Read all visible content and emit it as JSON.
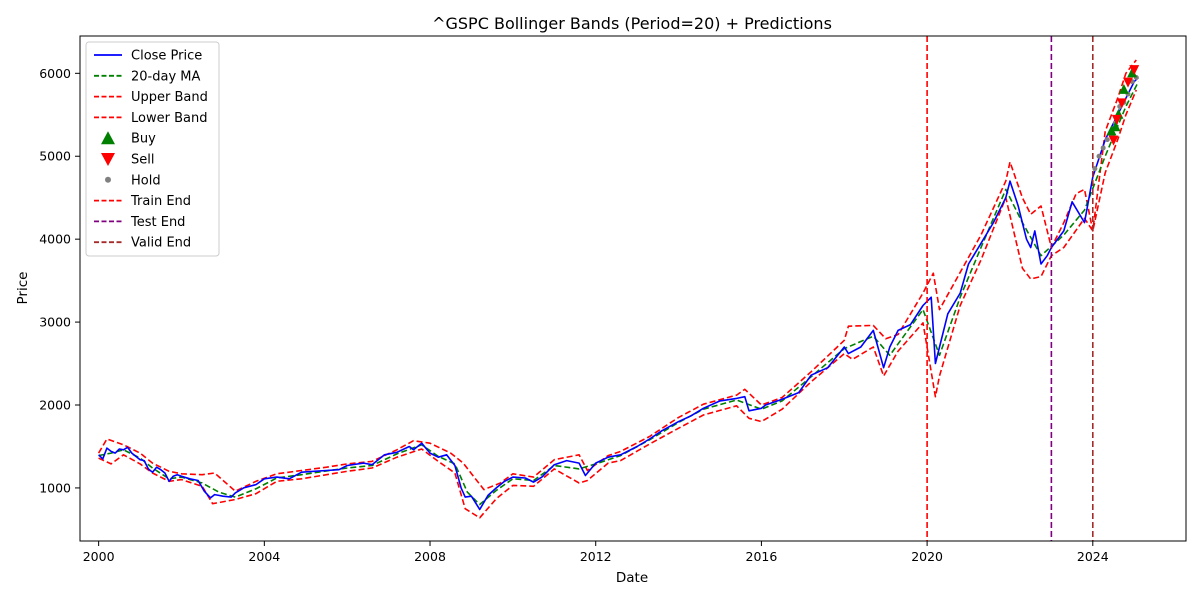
{
  "chart_data": {
    "type": "line",
    "title": "^GSPC Bollinger Bands (Period=20) + Predictions",
    "xlabel": "Date",
    "ylabel": "Price",
    "xlim": [
      1999.55,
      2026.25
    ],
    "ylim": [
      360,
      6450
    ],
    "x_ticks": [
      2000,
      2004,
      2008,
      2012,
      2016,
      2020,
      2024
    ],
    "x_tick_labels": [
      "2000",
      "2004",
      "2008",
      "2012",
      "2016",
      "2020",
      "2024"
    ],
    "y_ticks": [
      1000,
      2000,
      3000,
      4000,
      5000,
      6000
    ],
    "y_tick_labels": [
      "1000",
      "2000",
      "3000",
      "4000",
      "5000",
      "6000"
    ],
    "grid": false,
    "legend_position": "top-left",
    "series": [
      {
        "name": "Close Price",
        "color": "#0000ff",
        "style": "solid",
        "x": [
          2000.0,
          2000.1,
          2000.2,
          2000.3,
          2000.4,
          2000.5,
          2000.6,
          2000.7,
          2000.8,
          2000.9,
          2001.0,
          2001.1,
          2001.2,
          2001.3,
          2001.4,
          2001.5,
          2001.6,
          2001.7,
          2001.8,
          2001.9,
          2002.0,
          2002.2,
          2002.4,
          2002.55,
          2002.7,
          2002.8,
          2002.9,
          2003.0,
          2003.2,
          2003.3,
          2003.5,
          2003.8,
          2004.0,
          2004.3,
          2004.6,
          2004.9,
          2005.2,
          2005.5,
          2005.8,
          2006.0,
          2006.4,
          2006.6,
          2006.9,
          2007.2,
          2007.5,
          2007.6,
          2007.8,
          2008.0,
          2008.2,
          2008.4,
          2008.6,
          2008.75,
          2008.85,
          2009.0,
          2009.15,
          2009.2,
          2009.4,
          2009.6,
          2009.8,
          2010.0,
          2010.3,
          2010.5,
          2010.7,
          2011.0,
          2011.3,
          2011.6,
          2011.75,
          2012.0,
          2012.3,
          2012.6,
          2013.0,
          2013.3,
          2013.6,
          2014.0,
          2014.3,
          2014.6,
          2015.0,
          2015.4,
          2015.6,
          2015.7,
          2016.0,
          2016.1,
          2016.5,
          2016.9,
          2017.2,
          2017.6,
          2018.0,
          2018.1,
          2018.4,
          2018.7,
          2018.95,
          2019.1,
          2019.3,
          2019.6,
          2019.9,
          2020.1,
          2020.2,
          2020.5,
          2020.8,
          2021.0,
          2021.3,
          2021.6,
          2021.9,
          2022.0,
          2022.2,
          2022.4,
          2022.5,
          2022.6,
          2022.75,
          2022.9,
          2023.0,
          2023.3,
          2023.5,
          2023.8,
          2024.0,
          2024.3,
          2024.5,
          2024.6,
          2024.8,
          2025.0,
          2025.1
        ],
        "y": [
          1400,
          1350,
          1480,
          1440,
          1420,
          1470,
          1460,
          1490,
          1420,
          1380,
          1340,
          1330,
          1230,
          1190,
          1250,
          1220,
          1180,
          1080,
          1140,
          1160,
          1140,
          1110,
          1090,
          960,
          880,
          920,
          910,
          900,
          890,
          940,
          1000,
          1040,
          1110,
          1130,
          1110,
          1190,
          1200,
          1210,
          1220,
          1270,
          1300,
          1280,
          1400,
          1430,
          1500,
          1460,
          1540,
          1420,
          1370,
          1400,
          1270,
          1000,
          890,
          900,
          780,
          740,
          910,
          1000,
          1080,
          1130,
          1120,
          1070,
          1130,
          1280,
          1330,
          1300,
          1150,
          1300,
          1370,
          1400,
          1500,
          1590,
          1690,
          1800,
          1870,
          1960,
          2050,
          2080,
          2100,
          1930,
          1960,
          2000,
          2070,
          2150,
          2360,
          2450,
          2700,
          2620,
          2700,
          2900,
          2450,
          2700,
          2900,
          2970,
          3200,
          3300,
          2500,
          3100,
          3350,
          3700,
          3950,
          4200,
          4500,
          4700,
          4400,
          4000,
          3900,
          4100,
          3700,
          3800,
          3900,
          4100,
          4450,
          4200,
          4750,
          5200,
          5400,
          5500,
          5700,
          5900,
          5950
        ]
      },
      {
        "name": "20-day MA",
        "color": "#008000",
        "style": "dashed",
        "x": [
          2000.0,
          2000.3,
          2000.6,
          2001.0,
          2001.3,
          2001.7,
          2002.0,
          2002.5,
          2002.9,
          2003.3,
          2003.8,
          2004.3,
          2004.9,
          2005.5,
          2006.0,
          2006.6,
          2007.2,
          2007.8,
          2008.2,
          2008.6,
          2008.9,
          2009.2,
          2009.6,
          2010.0,
          2010.5,
          2011.0,
          2011.6,
          2012.0,
          2012.6,
          2013.3,
          2014.0,
          2014.6,
          2015.4,
          2016.0,
          2016.5,
          2017.2,
          2018.0,
          2018.7,
          2019.1,
          2019.9,
          2020.3,
          2020.8,
          2021.3,
          2021.9,
          2022.3,
          2022.75,
          2023.3,
          2023.8,
          2024.3,
          2024.8,
          2025.1
        ],
        "y": [
          1390,
          1420,
          1460,
          1360,
          1240,
          1110,
          1130,
          1060,
          950,
          890,
          990,
          1120,
          1160,
          1205,
          1240,
          1270,
          1410,
          1520,
          1380,
          1290,
          950,
          800,
          970,
          1110,
          1090,
          1270,
          1230,
          1290,
          1390,
          1580,
          1790,
          1950,
          2060,
          1950,
          2050,
          2340,
          2680,
          2830,
          2600,
          3150,
          2600,
          3300,
          3900,
          4600,
          4200,
          3800,
          4050,
          4350,
          5000,
          5600,
          5900
        ]
      },
      {
        "name": "Upper Band",
        "color": "#ff0000",
        "style": "dashed",
        "x": [
          2000.0,
          2000.2,
          2000.6,
          2001.0,
          2001.3,
          2001.7,
          2002.0,
          2002.5,
          2002.8,
          2003.3,
          2003.8,
          2004.3,
          2004.9,
          2005.5,
          2006.0,
          2006.6,
          2007.2,
          2007.6,
          2008.0,
          2008.5,
          2008.8,
          2009.3,
          2009.7,
          2010.0,
          2010.5,
          2011.0,
          2011.6,
          2011.8,
          2012.3,
          2012.6,
          2013.3,
          2014.0,
          2014.6,
          2015.4,
          2015.6,
          2016.0,
          2016.5,
          2017.2,
          2018.0,
          2018.1,
          2018.7,
          2019.0,
          2019.3,
          2019.9,
          2020.15,
          2020.3,
          2020.8,
          2021.3,
          2021.9,
          2022.0,
          2022.3,
          2022.5,
          2022.75,
          2023.0,
          2023.3,
          2023.6,
          2023.8,
          2024.0,
          2024.3,
          2024.6,
          2024.8,
          2025.05
        ],
        "y": [
          1420,
          1590,
          1520,
          1420,
          1300,
          1200,
          1170,
          1160,
          1180,
          960,
          1080,
          1170,
          1210,
          1250,
          1290,
          1320,
          1460,
          1570,
          1540,
          1420,
          1300,
          980,
          1060,
          1170,
          1130,
          1340,
          1400,
          1210,
          1390,
          1440,
          1620,
          1850,
          2010,
          2120,
          2190,
          2000,
          2090,
          2400,
          2780,
          2950,
          2960,
          2800,
          2850,
          3350,
          3590,
          3150,
          3600,
          4050,
          4700,
          4930,
          4500,
          4300,
          4400,
          3900,
          4200,
          4550,
          4600,
          4100,
          5300,
          5700,
          6000,
          6160
        ]
      },
      {
        "name": "Lower Band",
        "color": "#ff0000",
        "style": "dashed",
        "x": [
          2000.0,
          2000.3,
          2000.6,
          2001.0,
          2001.3,
          2001.7,
          2002.0,
          2002.5,
          2002.75,
          2003.3,
          2003.8,
          2004.3,
          2004.9,
          2005.5,
          2006.0,
          2006.6,
          2007.2,
          2007.8,
          2008.2,
          2008.6,
          2008.85,
          2009.2,
          2009.6,
          2010.0,
          2010.5,
          2011.0,
          2011.6,
          2011.8,
          2012.3,
          2012.6,
          2013.3,
          2014.0,
          2014.6,
          2015.4,
          2015.7,
          2016.0,
          2016.5,
          2017.2,
          2018.0,
          2018.2,
          2018.7,
          2018.95,
          2019.3,
          2019.9,
          2020.2,
          2020.3,
          2020.8,
          2021.3,
          2021.9,
          2022.3,
          2022.5,
          2022.75,
          2023.0,
          2023.3,
          2023.8,
          2024.0,
          2024.3,
          2024.6,
          2024.8,
          2025.05
        ],
        "y": [
          1360,
          1290,
          1400,
          1290,
          1180,
          1080,
          1100,
          1020,
          810,
          860,
          930,
          1080,
          1110,
          1160,
          1200,
          1240,
          1370,
          1470,
          1320,
          1180,
          750,
          640,
          870,
          1030,
          1020,
          1230,
          1060,
          1090,
          1300,
          1330,
          1530,
          1720,
          1880,
          1990,
          1840,
          1800,
          1950,
          2280,
          2620,
          2550,
          2700,
          2350,
          2650,
          2990,
          2100,
          2350,
          3200,
          3750,
          4500,
          3650,
          3520,
          3550,
          3800,
          3900,
          4250,
          4100,
          4800,
          5200,
          5500,
          5800
        ]
      }
    ],
    "markers": {
      "buy": {
        "name": "Buy",
        "color": "#008000",
        "x": [
          2024.45,
          2024.55,
          2024.62,
          2024.75,
          2024.95
        ],
        "y": [
          5300,
          5350,
          5500,
          5800,
          6000
        ]
      },
      "sell": {
        "name": "Sell",
        "color": "#ff0000",
        "x": [
          2024.5,
          2024.58,
          2024.7,
          2024.85,
          2025.0
        ],
        "y": [
          5200,
          5450,
          5650,
          5900,
          6050
        ]
      },
      "hold": {
        "name": "Hold",
        "color": "#808080",
        "x": [
          2024.05,
          2024.15,
          2024.25,
          2024.35,
          2024.45,
          2024.55,
          2024.65,
          2024.75,
          2024.85,
          2024.95,
          2025.05
        ],
        "y": [
          4850,
          5000,
          5100,
          5200,
          5250,
          5400,
          5600,
          5650,
          5750,
          5900,
          5950
        ]
      }
    },
    "vlines": [
      {
        "name": "Train End",
        "x": 2020.0,
        "color": "#ff0000"
      },
      {
        "name": "Test End",
        "x": 2023.0,
        "color": "#800080"
      },
      {
        "name": "Valid End",
        "x": 2024.0,
        "color": "#a52a2a"
      }
    ],
    "legend": [
      {
        "label": "Close Price",
        "kind": "line",
        "color": "#0000ff",
        "dash": false
      },
      {
        "label": "20-day MA",
        "kind": "line",
        "color": "#008000",
        "dash": true
      },
      {
        "label": "Upper Band",
        "kind": "line",
        "color": "#ff0000",
        "dash": true
      },
      {
        "label": "Lower Band",
        "kind": "line",
        "color": "#ff0000",
        "dash": true
      },
      {
        "label": "Buy",
        "kind": "up",
        "color": "#008000",
        "dash": false
      },
      {
        "label": "Sell",
        "kind": "down",
        "color": "#ff0000",
        "dash": false
      },
      {
        "label": "Hold",
        "kind": "dot",
        "color": "#808080",
        "dash": false
      },
      {
        "label": "Train End",
        "kind": "line",
        "color": "#ff0000",
        "dash": true
      },
      {
        "label": "Test End",
        "kind": "line",
        "color": "#800080",
        "dash": true
      },
      {
        "label": "Valid End",
        "kind": "line",
        "color": "#a52a2a",
        "dash": true
      }
    ]
  }
}
